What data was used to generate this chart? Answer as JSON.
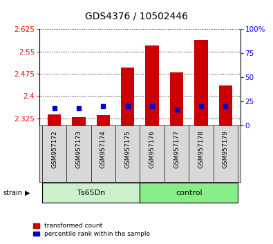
{
  "title": "GDS4376 / 10502446",
  "samples": [
    "GSM957172",
    "GSM957173",
    "GSM957174",
    "GSM957175",
    "GSM957176",
    "GSM957177",
    "GSM957178",
    "GSM957179"
  ],
  "red_values": [
    2.338,
    2.328,
    2.335,
    2.495,
    2.57,
    2.48,
    2.59,
    2.435
  ],
  "blue_pct": [
    18,
    18,
    20,
    20,
    20,
    17,
    20,
    20
  ],
  "y_min": 2.3,
  "y_max": 2.625,
  "y_ticks": [
    2.325,
    2.4,
    2.475,
    2.55,
    2.625
  ],
  "y2_ticks": [
    0,
    25,
    50,
    75,
    100
  ],
  "y2_labels": [
    "0",
    "25",
    "50",
    "75",
    "100%"
  ],
  "group_colors": {
    "Ts65Dn": "#ccf0cc",
    "control": "#88ee88"
  },
  "bar_color": "#cc0000",
  "dot_color": "#0000cc",
  "sample_bg": "#d8d8d8",
  "plot_bg": "#ffffff",
  "legend_red": "transformed count",
  "legend_blue": "percentile rank within the sample",
  "ts_indices": [
    0,
    1,
    2,
    3
  ],
  "ctrl_indices": [
    4,
    5,
    6,
    7
  ]
}
